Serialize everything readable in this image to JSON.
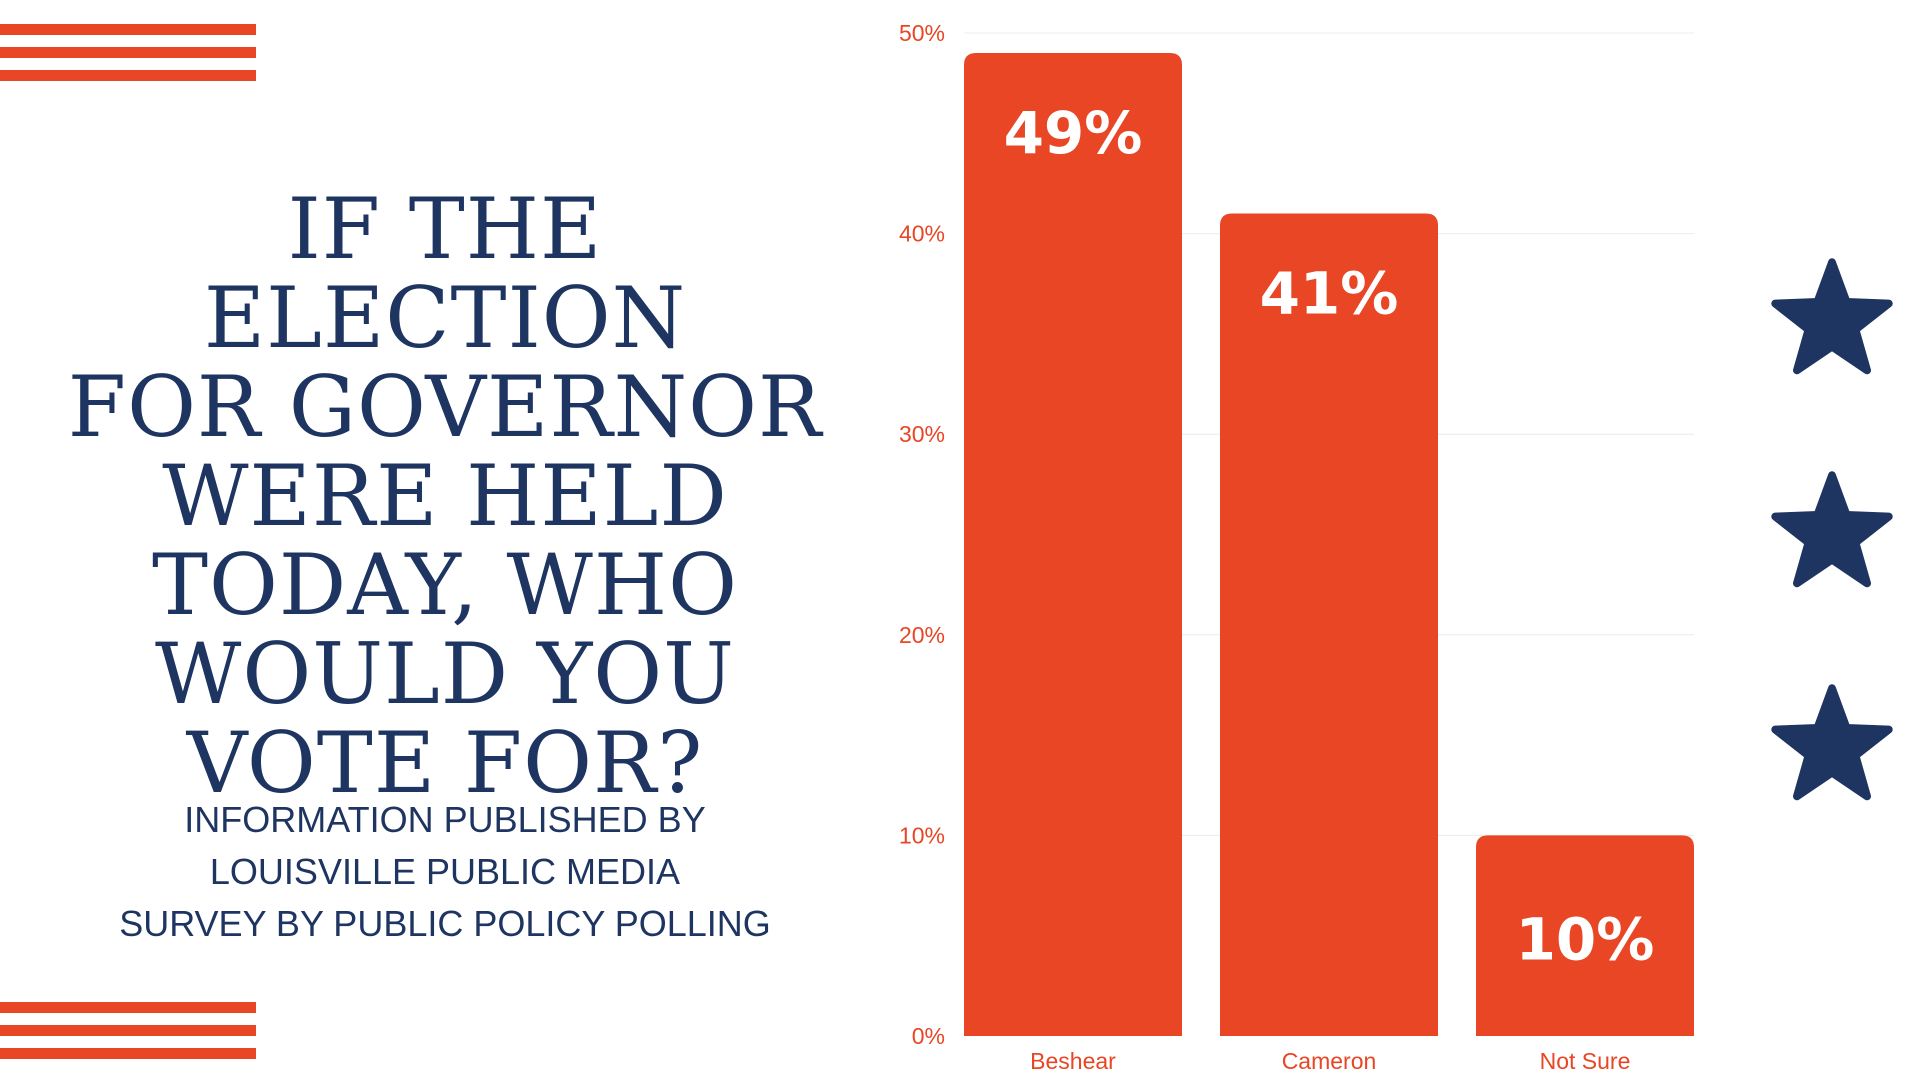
{
  "headline": {
    "lines": [
      "IF THE ELECTION",
      "FOR GOVERNOR",
      "WERE HELD",
      "TODAY, WHO",
      "WOULD YOU",
      "VOTE FOR?"
    ]
  },
  "credits": {
    "lines": [
      "INFORMATION PUBLISHED BY",
      "LOUISVILLE PUBLIC MEDIA",
      "SURVEY BY PUBLIC POLICY POLLING"
    ]
  },
  "colors": {
    "accent": "#e84624",
    "navy": "#1f3561",
    "grid": "#ececec"
  },
  "decor": {
    "stripes_icon": "flag-stripes",
    "star_icon": "star",
    "star_count": 3
  },
  "chart_data": {
    "type": "bar",
    "title": "",
    "xlabel": "",
    "ylabel": "",
    "categories": [
      "Beshear",
      "Cameron",
      "Not Sure"
    ],
    "values": [
      49,
      41,
      10
    ],
    "data_labels": [
      "49%",
      "41%",
      "10%"
    ],
    "ylim": [
      0,
      50
    ],
    "yticks": [
      0,
      10,
      20,
      30,
      40,
      50
    ],
    "ytick_labels": [
      "0%",
      "10%",
      "20%",
      "30%",
      "40%",
      "50%"
    ],
    "grid": true,
    "legend": "none"
  }
}
